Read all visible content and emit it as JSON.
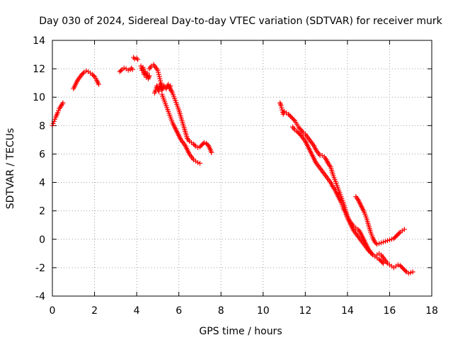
{
  "chart_data": {
    "type": "scatter",
    "title": "Day 030 of 2024, Sidereal Day-to-day VTEC variation (SDTVAR) for receiver murk",
    "xlabel": "GPS time / hours",
    "ylabel": "SDTVAR / TECUs",
    "xlim": [
      0,
      18
    ],
    "ylim": [
      -4,
      14
    ],
    "xticks": [
      0,
      2,
      4,
      6,
      8,
      10,
      12,
      14,
      16,
      18
    ],
    "yticks": [
      -4,
      -2,
      0,
      2,
      4,
      6,
      8,
      10,
      12,
      14
    ],
    "grid": true,
    "marker": "plus",
    "color": "#ff0000",
    "series": [
      {
        "name": "SDTVAR",
        "segments": [
          [
            [
              0.0,
              8.0
            ],
            [
              0.08,
              8.3
            ],
            [
              0.16,
              8.6
            ],
            [
              0.25,
              8.9
            ],
            [
              0.33,
              9.2
            ],
            [
              0.42,
              9.4
            ],
            [
              0.5,
              9.6
            ]
          ],
          [
            [
              1.0,
              10.6
            ],
            [
              1.1,
              10.9
            ],
            [
              1.2,
              11.2
            ],
            [
              1.3,
              11.4
            ],
            [
              1.4,
              11.6
            ],
            [
              1.5,
              11.75
            ],
            [
              1.6,
              11.85
            ],
            [
              1.7,
              11.8
            ],
            [
              1.8,
              11.7
            ],
            [
              1.9,
              11.6
            ],
            [
              2.0,
              11.45
            ],
            [
              2.1,
              11.2
            ],
            [
              2.2,
              10.9
            ]
          ],
          [
            [
              3.2,
              11.8
            ],
            [
              3.3,
              11.95
            ],
            [
              3.4,
              12.05
            ],
            [
              3.5,
              12.0
            ],
            [
              3.6,
              11.9
            ],
            [
              3.7,
              11.95
            ],
            [
              3.75,
              12.05
            ],
            [
              3.8,
              11.95
            ]
          ],
          [
            [
              3.85,
              12.8
            ],
            [
              3.9,
              12.7
            ],
            [
              4.0,
              12.75
            ],
            [
              4.05,
              12.65
            ]
          ],
          [
            [
              4.2,
              12.2
            ],
            [
              4.25,
              11.9
            ],
            [
              4.3,
              12.1
            ],
            [
              4.35,
              11.6
            ],
            [
              4.4,
              11.8
            ],
            [
              4.45,
              11.4
            ],
            [
              4.5,
              11.7
            ],
            [
              4.55,
              11.3
            ],
            [
              4.6,
              11.5
            ]
          ],
          [
            [
              4.6,
              12.0
            ],
            [
              4.7,
              12.2
            ],
            [
              4.8,
              12.3
            ],
            [
              4.9,
              12.1
            ],
            [
              5.0,
              11.9
            ],
            [
              5.05,
              11.6
            ],
            [
              5.1,
              11.3
            ],
            [
              5.15,
              11.0
            ],
            [
              5.2,
              10.8
            ]
          ],
          [
            [
              4.85,
              10.3
            ],
            [
              4.9,
              10.5
            ],
            [
              4.95,
              10.8
            ],
            [
              5.0,
              10.6
            ],
            [
              5.05,
              10.4
            ],
            [
              5.1,
              10.9
            ],
            [
              5.15,
              10.7
            ],
            [
              5.2,
              10.5
            ],
            [
              5.3,
              10.8
            ],
            [
              5.4,
              10.6
            ],
            [
              5.5,
              10.9
            ],
            [
              5.55,
              10.6
            ],
            [
              5.6,
              10.8
            ]
          ],
          [
            [
              5.2,
              10.2
            ],
            [
              5.3,
              9.8
            ],
            [
              5.4,
              9.4
            ],
            [
              5.5,
              9.0
            ],
            [
              5.6,
              8.6
            ],
            [
              5.7,
              8.2
            ],
            [
              5.8,
              7.9
            ],
            [
              5.9,
              7.6
            ],
            [
              6.0,
              7.3
            ],
            [
              6.1,
              7.0
            ],
            [
              6.2,
              6.8
            ],
            [
              6.3,
              6.6
            ],
            [
              6.4,
              6.3
            ],
            [
              6.5,
              6.0
            ],
            [
              6.6,
              5.8
            ],
            [
              6.7,
              5.6
            ],
            [
              6.8,
              5.5
            ],
            [
              6.9,
              5.4
            ],
            [
              7.0,
              5.35
            ]
          ],
          [
            [
              5.6,
              10.6
            ],
            [
              5.7,
              10.3
            ],
            [
              5.8,
              9.9
            ],
            [
              5.9,
              9.5
            ],
            [
              6.0,
              9.1
            ],
            [
              6.1,
              8.6
            ],
            [
              6.2,
              8.1
            ],
            [
              6.3,
              7.6
            ],
            [
              6.4,
              7.1
            ],
            [
              6.5,
              6.9
            ],
            [
              6.6,
              6.8
            ],
            [
              6.7,
              6.7
            ],
            [
              6.8,
              6.55
            ],
            [
              6.9,
              6.45
            ],
            [
              7.0,
              6.5
            ],
            [
              7.1,
              6.65
            ],
            [
              7.2,
              6.8
            ],
            [
              7.3,
              6.75
            ],
            [
              7.4,
              6.6
            ],
            [
              7.5,
              6.3
            ],
            [
              7.55,
              6.1
            ]
          ],
          [
            [
              10.8,
              9.6
            ],
            [
              10.85,
              9.4
            ],
            [
              10.9,
              9.1
            ],
            [
              10.95,
              8.8
            ],
            [
              11.0,
              9.0
            ],
            [
              11.1,
              8.9
            ],
            [
              11.2,
              8.8
            ],
            [
              11.3,
              8.65
            ],
            [
              11.4,
              8.5
            ],
            [
              11.5,
              8.35
            ],
            [
              11.6,
              8.1
            ],
            [
              11.7,
              7.85
            ],
            [
              11.8,
              7.7
            ],
            [
              11.9,
              7.5
            ],
            [
              12.0,
              7.4
            ],
            [
              12.1,
              7.2
            ],
            [
              12.2,
              7.0
            ],
            [
              12.3,
              6.8
            ],
            [
              12.4,
              6.6
            ],
            [
              12.5,
              6.3
            ],
            [
              12.6,
              6.1
            ],
            [
              12.7,
              5.9
            ],
            [
              12.8,
              5.9
            ],
            [
              12.9,
              5.8
            ],
            [
              13.0,
              5.6
            ],
            [
              13.1,
              5.3
            ],
            [
              13.2,
              5.1
            ],
            [
              13.3,
              4.6
            ],
            [
              13.4,
              4.2
            ],
            [
              13.5,
              3.8
            ],
            [
              13.6,
              3.4
            ],
            [
              13.7,
              3.0
            ],
            [
              13.8,
              2.6
            ],
            [
              13.9,
              2.1
            ],
            [
              14.0,
              1.6
            ],
            [
              14.1,
              1.3
            ],
            [
              14.2,
              1.1
            ],
            [
              14.3,
              0.9
            ],
            [
              14.4,
              0.8
            ],
            [
              14.5,
              0.7
            ],
            [
              14.6,
              0.5
            ],
            [
              14.7,
              0.2
            ],
            [
              14.8,
              -0.1
            ],
            [
              14.9,
              -0.4
            ],
            [
              15.0,
              -0.7
            ],
            [
              15.1,
              -0.9
            ],
            [
              15.2,
              -1.1
            ],
            [
              15.3,
              -1.2
            ],
            [
              15.4,
              -1.1
            ],
            [
              15.5,
              -1.0
            ],
            [
              15.6,
              -1.1
            ],
            [
              15.7,
              -1.3
            ],
            [
              15.8,
              -1.5
            ],
            [
              15.9,
              -1.7
            ],
            [
              16.0,
              -1.8
            ],
            [
              16.1,
              -1.9
            ],
            [
              16.2,
              -2.0
            ],
            [
              16.3,
              -1.9
            ],
            [
              16.4,
              -1.8
            ],
            [
              16.5,
              -1.85
            ],
            [
              16.6,
              -2.0
            ],
            [
              16.7,
              -2.15
            ],
            [
              16.8,
              -2.3
            ],
            [
              16.9,
              -2.4
            ],
            [
              17.0,
              -2.35
            ],
            [
              17.1,
              -2.3
            ]
          ],
          [
            [
              11.4,
              7.9
            ],
            [
              11.5,
              7.7
            ],
            [
              11.6,
              7.6
            ],
            [
              11.7,
              7.45
            ],
            [
              11.8,
              7.3
            ],
            [
              11.9,
              7.1
            ],
            [
              12.0,
              6.9
            ],
            [
              12.1,
              6.6
            ],
            [
              12.2,
              6.3
            ],
            [
              12.3,
              6.0
            ],
            [
              12.4,
              5.7
            ],
            [
              12.5,
              5.4
            ],
            [
              12.6,
              5.2
            ],
            [
              12.7,
              5.0
            ],
            [
              12.8,
              4.8
            ],
            [
              12.9,
              4.6
            ],
            [
              13.0,
              4.4
            ],
            [
              13.1,
              4.2
            ],
            [
              13.2,
              4.0
            ],
            [
              13.3,
              3.7
            ],
            [
              13.4,
              3.5
            ],
            [
              13.5,
              3.2
            ],
            [
              13.6,
              2.9
            ],
            [
              13.7,
              2.6
            ],
            [
              13.8,
              2.2
            ],
            [
              13.9,
              1.9
            ],
            [
              14.0,
              1.5
            ],
            [
              14.1,
              1.2
            ],
            [
              14.2,
              0.9
            ],
            [
              14.3,
              0.6
            ],
            [
              14.4,
              0.4
            ],
            [
              14.5,
              0.2
            ],
            [
              14.6,
              0.0
            ],
            [
              14.7,
              -0.2
            ],
            [
              14.8,
              -0.4
            ],
            [
              14.9,
              -0.6
            ],
            [
              15.0,
              -0.8
            ],
            [
              15.1,
              -0.95
            ],
            [
              15.2,
              -1.1
            ],
            [
              15.3,
              -1.2
            ],
            [
              15.4,
              -1.3
            ],
            [
              15.5,
              -1.4
            ],
            [
              15.6,
              -1.55
            ],
            [
              15.7,
              -1.7
            ]
          ],
          [
            [
              14.4,
              3.0
            ],
            [
              14.5,
              2.8
            ],
            [
              14.6,
              2.5
            ],
            [
              14.7,
              2.2
            ],
            [
              14.8,
              1.9
            ],
            [
              14.9,
              1.5
            ],
            [
              15.0,
              1.0
            ],
            [
              15.1,
              0.5
            ],
            [
              15.2,
              0.1
            ],
            [
              15.3,
              -0.2
            ],
            [
              15.4,
              -0.35
            ],
            [
              15.5,
              -0.3
            ],
            [
              15.6,
              -0.25
            ],
            [
              15.7,
              -0.2
            ],
            [
              15.8,
              -0.15
            ],
            [
              15.9,
              -0.1
            ],
            [
              16.0,
              -0.05
            ],
            [
              16.1,
              0.0
            ],
            [
              16.2,
              0.05
            ],
            [
              16.3,
              0.2
            ],
            [
              16.4,
              0.35
            ],
            [
              16.5,
              0.5
            ],
            [
              16.6,
              0.6
            ],
            [
              16.7,
              0.7
            ]
          ]
        ]
      }
    ]
  }
}
